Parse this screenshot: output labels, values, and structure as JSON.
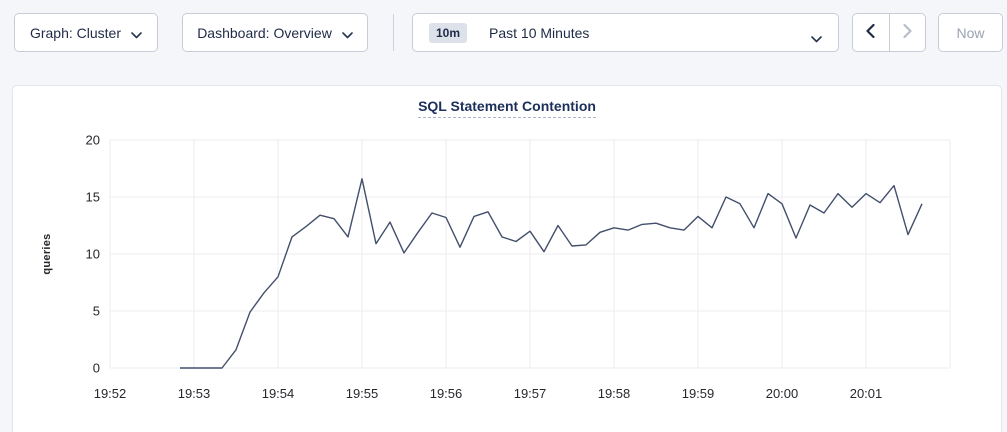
{
  "toolbar": {
    "graph_selector": {
      "label": "Graph: Cluster",
      "icon": "chevron-down-icon"
    },
    "dashboard_selector": {
      "label": "Dashboard: Overview",
      "icon": "chevron-down-icon"
    },
    "time_picker": {
      "badge": "10m",
      "label": "Past 10 Minutes",
      "icon": "chevron-down-icon"
    },
    "prev_button": {
      "icon": "chevron-left-icon",
      "enabled": true
    },
    "next_button": {
      "icon": "chevron-right-icon",
      "enabled": false
    },
    "now_button": {
      "label": "Now",
      "enabled": false
    }
  },
  "panel": {
    "title": "SQL Statement Contention"
  },
  "colors": {
    "page_background": "#f4f6fa",
    "panel_background": "#ffffff",
    "button_border": "#c7ccd7",
    "badge_background": "#dde1ea",
    "toolbar_text": "#1f2a47",
    "disabled_text": "#9ba3b2",
    "title_text": "#1c2f5a",
    "grid": "#ededf0",
    "series_line": "#434f6b",
    "tick_text": "#26282e"
  },
  "chart_data": {
    "type": "line",
    "title": "SQL Statement Contention",
    "xlabel": "",
    "ylabel": "queries",
    "ylim": [
      0,
      20
    ],
    "yticks": [
      0,
      5,
      10,
      15,
      20
    ],
    "grid": true,
    "legend": "none",
    "x_axis_start": "19:52",
    "x_span_seconds": 600,
    "x_tick_interval_seconds": 60,
    "xtick_labels": [
      "19:52",
      "19:53",
      "19:54",
      "19:55",
      "19:56",
      "19:57",
      "19:58",
      "19:59",
      "20:00",
      "20:01"
    ],
    "series": [
      {
        "name": "queries",
        "start_time": "19:52:50",
        "start_offset_seconds": 50,
        "step_seconds": 10,
        "values": [
          0,
          0,
          0,
          0,
          1.6,
          4.9,
          6.6,
          8.0,
          11.5,
          12.4,
          13.4,
          13.1,
          11.5,
          16.6,
          10.9,
          12.8,
          10.1,
          11.9,
          13.6,
          13.2,
          10.6,
          13.3,
          13.7,
          11.5,
          11.1,
          12.0,
          10.2,
          12.5,
          10.7,
          10.8,
          11.9,
          12.3,
          12.1,
          12.6,
          12.7,
          12.3,
          12.1,
          13.3,
          12.3,
          15.0,
          14.4,
          12.3,
          15.3,
          14.4,
          11.4,
          14.3,
          13.6,
          15.3,
          14.1,
          15.3,
          14.5,
          16.0,
          11.7,
          14.4
        ]
      }
    ]
  }
}
